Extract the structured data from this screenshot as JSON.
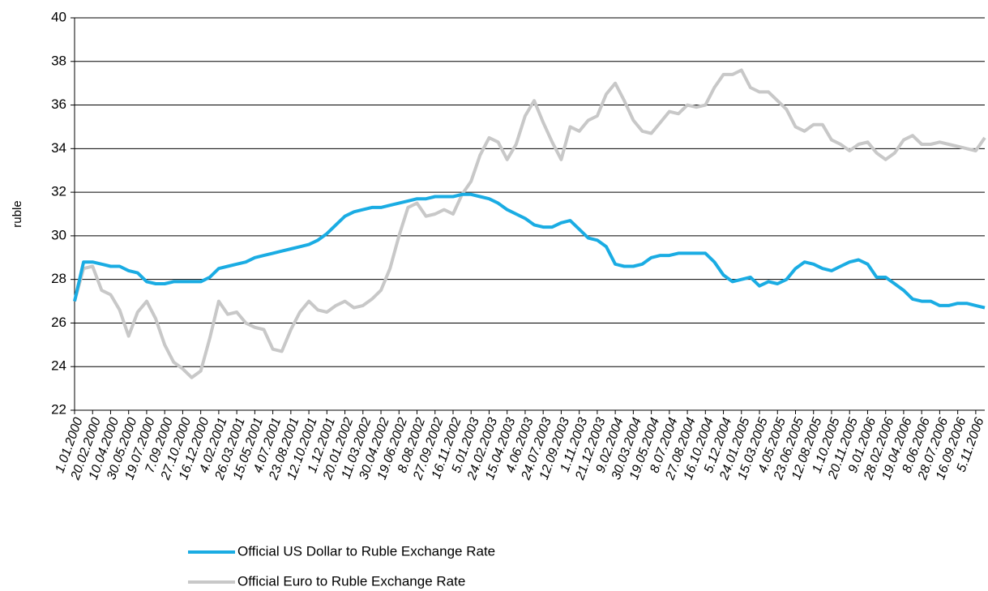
{
  "chart_data": {
    "type": "line",
    "y_label": "ruble",
    "categories": [
      "1.01.2000",
      null,
      "20.02.2000",
      null,
      "10.04.2000",
      null,
      "30.05.2000",
      null,
      "19.07.2000",
      null,
      "7.09.2000",
      null,
      "27.10.2000",
      null,
      "16.12.2000",
      null,
      "4.02.2001",
      null,
      "26.03.2001",
      null,
      "15.05.2001",
      null,
      "4.07.2001",
      null,
      "23.08.2001",
      null,
      "12.10.2001",
      null,
      "1.12.2001",
      null,
      "20.01.2002",
      null,
      "11.03.2002",
      null,
      "30.04.2002",
      null,
      "19.06.2002",
      null,
      "8.08.2002",
      null,
      "27.09.2002",
      null,
      "16.11.2002",
      null,
      "5.01.2003",
      null,
      "24.02.2003",
      null,
      "15.04.2003",
      null,
      "4.06.2003",
      null,
      "24.07.2003",
      null,
      "12.09.2003",
      null,
      "1.11.2003",
      null,
      "21.12.2003",
      null,
      "9.02.2004",
      null,
      "30.03.2004",
      null,
      "19.05.2004",
      null,
      "8.07.2004",
      null,
      "27.08.2004",
      null,
      "16.10.2004",
      null,
      "5.12.2004",
      null,
      "24.01.2005",
      null,
      "15.03.2005",
      null,
      "4.05.2005",
      null,
      "23.06.2005",
      null,
      "12.08.2005",
      null,
      "1.10.2005",
      null,
      "20.11.2005",
      null,
      "9.01.2006",
      null,
      "28.02.2006",
      null,
      "19.04.2006",
      null,
      "8.06.2006",
      null,
      "28.07.2006",
      null,
      "16.09.2006",
      null,
      "5.11.2006",
      null
    ],
    "series": [
      {
        "name": "Official US Dollar to Ruble Exchange Rate",
        "color": "#1aace3",
        "values": [
          27.0,
          28.8,
          28.8,
          28.7,
          28.6,
          28.6,
          28.4,
          28.3,
          27.9,
          27.8,
          27.8,
          27.9,
          27.9,
          27.9,
          27.9,
          28.1,
          28.5,
          28.6,
          28.7,
          28.8,
          29.0,
          29.1,
          29.2,
          29.3,
          29.4,
          29.5,
          29.6,
          29.8,
          30.1,
          30.5,
          30.9,
          31.1,
          31.2,
          31.3,
          31.3,
          31.4,
          31.5,
          31.6,
          31.7,
          31.7,
          31.8,
          31.8,
          31.8,
          31.9,
          31.9,
          31.8,
          31.7,
          31.5,
          31.2,
          31.0,
          30.8,
          30.5,
          30.4,
          30.4,
          30.6,
          30.7,
          30.3,
          29.9,
          29.8,
          29.5,
          28.7,
          28.6,
          28.6,
          28.7,
          29.0,
          29.1,
          29.1,
          29.2,
          29.2,
          29.2,
          29.2,
          28.8,
          28.2,
          27.9,
          28.0,
          28.1,
          27.7,
          27.9,
          27.8,
          28.0,
          28.5,
          28.8,
          28.7,
          28.5,
          28.4,
          28.6,
          28.8,
          28.9,
          28.7,
          28.1,
          28.1,
          27.8,
          27.5,
          27.1,
          27.0,
          27.0,
          26.8,
          26.8,
          26.9,
          26.9,
          26.8,
          26.7
        ]
      },
      {
        "name": "Official Euro to Ruble Exchange Rate",
        "color": "#c8c8c8",
        "values": [
          27.0,
          28.5,
          28.6,
          27.5,
          27.3,
          26.6,
          25.4,
          26.5,
          27.0,
          26.2,
          25.0,
          24.2,
          23.9,
          23.5,
          23.8,
          25.3,
          27.0,
          26.4,
          26.5,
          26.0,
          25.8,
          25.7,
          24.8,
          24.7,
          25.7,
          26.5,
          27.0,
          26.6,
          26.5,
          26.8,
          27.0,
          26.7,
          26.8,
          27.1,
          27.5,
          28.5,
          30.0,
          31.3,
          31.5,
          30.9,
          31.0,
          31.2,
          31.0,
          31.9,
          32.5,
          33.7,
          34.5,
          34.3,
          33.5,
          34.2,
          35.5,
          36.2,
          35.2,
          34.3,
          33.5,
          35.0,
          34.8,
          35.3,
          35.5,
          36.5,
          37.0,
          36.2,
          35.3,
          34.8,
          34.7,
          35.2,
          35.7,
          35.6,
          36.0,
          35.9,
          36.0,
          36.8,
          37.4,
          37.4,
          37.6,
          36.8,
          36.6,
          36.6,
          36.2,
          35.8,
          35.0,
          34.8,
          35.1,
          35.1,
          34.4,
          34.2,
          33.9,
          34.2,
          34.3,
          33.8,
          33.5,
          33.8,
          34.4,
          34.6,
          34.2,
          34.2,
          34.3,
          34.2,
          34.1,
          34.0,
          33.9,
          34.5
        ]
      }
    ],
    "ylim": [
      22,
      40
    ],
    "yticks": [
      22,
      24,
      26,
      28,
      30,
      32,
      34,
      36,
      38,
      40
    ],
    "grid": true
  }
}
